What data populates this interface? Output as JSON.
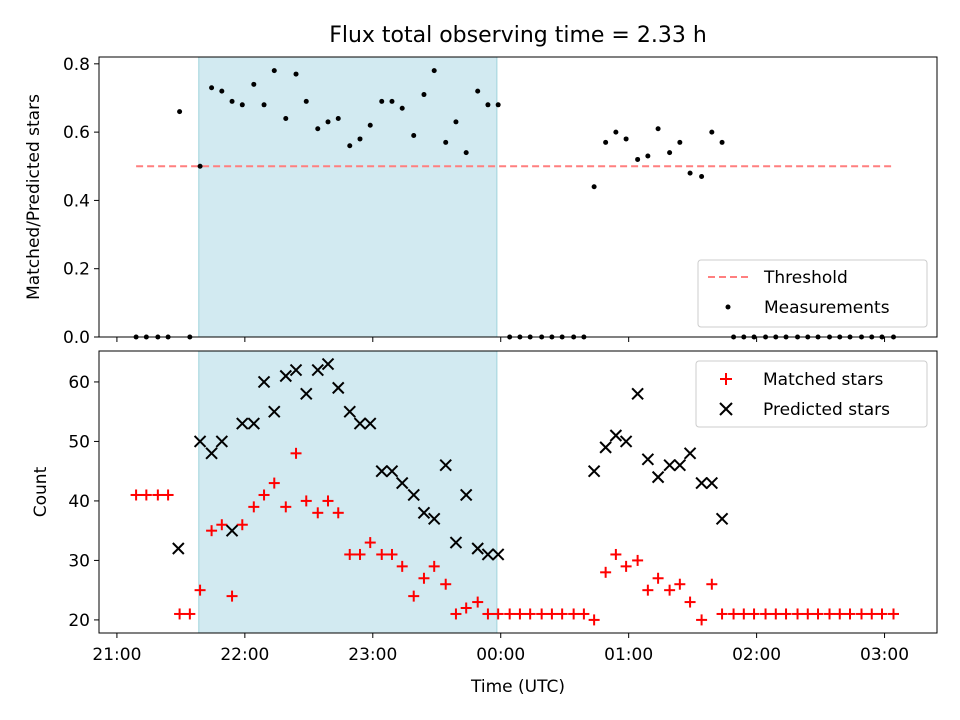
{
  "chart_data": [
    {
      "type": "scatter",
      "title": "Flux total observing time = 2.33 h",
      "ylabel": "Matched/Predicted stars",
      "xlabel": "",
      "ylim": [
        0,
        0.82
      ],
      "yticks": [
        "0.0",
        "0.2",
        "0.4",
        "0.6",
        "0.8"
      ],
      "ytick_values": [
        0,
        0.2,
        0.4,
        0.6,
        0.8
      ],
      "x_hours": [
        21.15,
        21.23,
        21.32,
        21.4,
        21.49,
        21.57,
        21.65,
        21.74,
        21.82,
        21.9,
        21.98,
        22.07,
        22.15,
        22.23,
        22.32,
        22.4,
        22.48,
        22.57,
        22.65,
        22.73,
        22.82,
        22.9,
        22.98,
        23.07,
        23.15,
        23.23,
        23.32,
        23.4,
        23.48,
        23.57,
        23.65,
        23.73,
        23.82,
        23.9,
        23.98,
        24.07,
        24.15,
        24.23,
        24.32,
        24.4,
        24.48,
        24.57,
        24.65,
        24.73,
        24.82,
        24.9,
        24.98,
        25.07,
        25.15,
        25.23,
        25.32,
        25.4,
        25.48,
        25.57,
        25.65,
        25.73,
        25.82,
        25.9,
        25.98,
        26.07,
        26.15,
        26.23,
        26.32,
        26.4,
        26.48,
        26.57,
        26.65,
        26.73,
        26.82,
        26.9,
        26.98,
        27.07
      ],
      "series": [
        {
          "name": "Measurements",
          "values": [
            0,
            0,
            0,
            0,
            0.66,
            0,
            0.5,
            0.73,
            0.72,
            0.69,
            0.68,
            0.74,
            0.68,
            0.78,
            0.64,
            0.77,
            0.69,
            0.61,
            0.63,
            0.64,
            0.56,
            0.58,
            0.62,
            0.69,
            0.69,
            0.67,
            0.59,
            0.71,
            0.78,
            0.57,
            0.63,
            0.54,
            0.72,
            0.68,
            0.68,
            0,
            0,
            0,
            0,
            0,
            0,
            0,
            0,
            0.44,
            0.57,
            0.6,
            0.58,
            0.52,
            0.53,
            0.61,
            0.54,
            0.57,
            0.48,
            0.47,
            0.6,
            0.57,
            0,
            0,
            0,
            0,
            0,
            0,
            0,
            0,
            0,
            0,
            0,
            0,
            0,
            0,
            0,
            0
          ]
        }
      ],
      "threshold": {
        "name": "Threshold",
        "value": 0.5,
        "x_range": [
          21.15,
          27.07
        ],
        "color": "#ff7f7f"
      },
      "shaded_region": {
        "x_range": [
          21.64,
          23.97
        ],
        "color": "#add8e6"
      },
      "legend": {
        "placement": "lower-right",
        "entries": [
          "Threshold",
          "Measurements"
        ]
      },
      "grid": false
    },
    {
      "type": "scatter",
      "title": "",
      "ylabel": "Count",
      "xlabel": "Time (UTC)",
      "ylim": [
        17.8,
        65.2
      ],
      "yticks": [
        "20",
        "30",
        "40",
        "50",
        "60"
      ],
      "ytick_values": [
        20,
        30,
        40,
        50,
        60
      ],
      "xlim": [
        20.86,
        27.41
      ],
      "xticks": [
        "21:00",
        "22:00",
        "23:00",
        "00:00",
        "01:00",
        "02:00",
        "03:00"
      ],
      "xtick_values": [
        21,
        22,
        23,
        24,
        25,
        26,
        27
      ],
      "x_hours": [
        21.15,
        21.23,
        21.32,
        21.4,
        21.49,
        21.57,
        21.65,
        21.74,
        21.82,
        21.9,
        21.98,
        22.07,
        22.15,
        22.23,
        22.32,
        22.4,
        22.48,
        22.57,
        22.65,
        22.73,
        22.82,
        22.9,
        22.98,
        23.07,
        23.15,
        23.23,
        23.32,
        23.4,
        23.48,
        23.57,
        23.65,
        23.73,
        23.82,
        23.9,
        23.98,
        24.07,
        24.15,
        24.23,
        24.32,
        24.4,
        24.48,
        24.57,
        24.65,
        24.73,
        24.82,
        24.9,
        24.98,
        25.07,
        25.15,
        25.23,
        25.32,
        25.4,
        25.48,
        25.57,
        25.65,
        25.73,
        25.82,
        25.9,
        25.98,
        26.07,
        26.15,
        26.23,
        26.32,
        26.4,
        26.48,
        26.57,
        26.65,
        26.73,
        26.82,
        26.9,
        26.98,
        27.07
      ],
      "series": [
        {
          "name": "Matched stars",
          "marker": "plus",
          "color": "#ff0000",
          "values": [
            41,
            41,
            41,
            41,
            21,
            21,
            25,
            35,
            36,
            24,
            36,
            39,
            41,
            43,
            39,
            48,
            40,
            38,
            40,
            38,
            31,
            31,
            33,
            31,
            31,
            29,
            24,
            27,
            29,
            26,
            21,
            22,
            23,
            21,
            21,
            21,
            21,
            21,
            21,
            21,
            21,
            21,
            21,
            20,
            28,
            31,
            29,
            30,
            25,
            27,
            25,
            26,
            23,
            20,
            26,
            21,
            21,
            21,
            21,
            21,
            21,
            21,
            21,
            21,
            21,
            21,
            21,
            21,
            21,
            21,
            21,
            21
          ]
        },
        {
          "name": "Predicted stars",
          "marker": "x",
          "color": "#000000",
          "x_hours": [
            21.48,
            21.65,
            21.74,
            21.82,
            21.9,
            21.98,
            22.07,
            22.15,
            22.23,
            22.32,
            22.4,
            22.48,
            22.57,
            22.65,
            22.73,
            22.82,
            22.9,
            22.98,
            23.07,
            23.15,
            23.23,
            23.32,
            23.4,
            23.48,
            23.57,
            23.65,
            23.73,
            23.82,
            23.9,
            23.98,
            24.73,
            24.82,
            24.9,
            24.98,
            25.07,
            25.15,
            25.23,
            25.32,
            25.4,
            25.48,
            25.57,
            25.65,
            25.73
          ],
          "values": [
            32,
            50,
            48,
            50,
            35,
            53,
            53,
            60,
            55,
            61,
            62,
            58,
            62,
            63,
            59,
            55,
            53,
            53,
            45,
            45,
            43,
            41,
            38,
            37,
            46,
            33,
            41,
            32,
            31,
            31,
            45,
            49,
            51,
            50,
            58,
            47,
            44,
            46,
            46,
            48,
            43,
            43,
            37
          ]
        }
      ],
      "shaded_region": {
        "x_range": [
          21.64,
          23.97
        ],
        "color": "#add8e6"
      },
      "legend": {
        "placement": "top-right",
        "entries": [
          "Matched stars",
          "Predicted stars"
        ]
      },
      "grid": false
    }
  ]
}
